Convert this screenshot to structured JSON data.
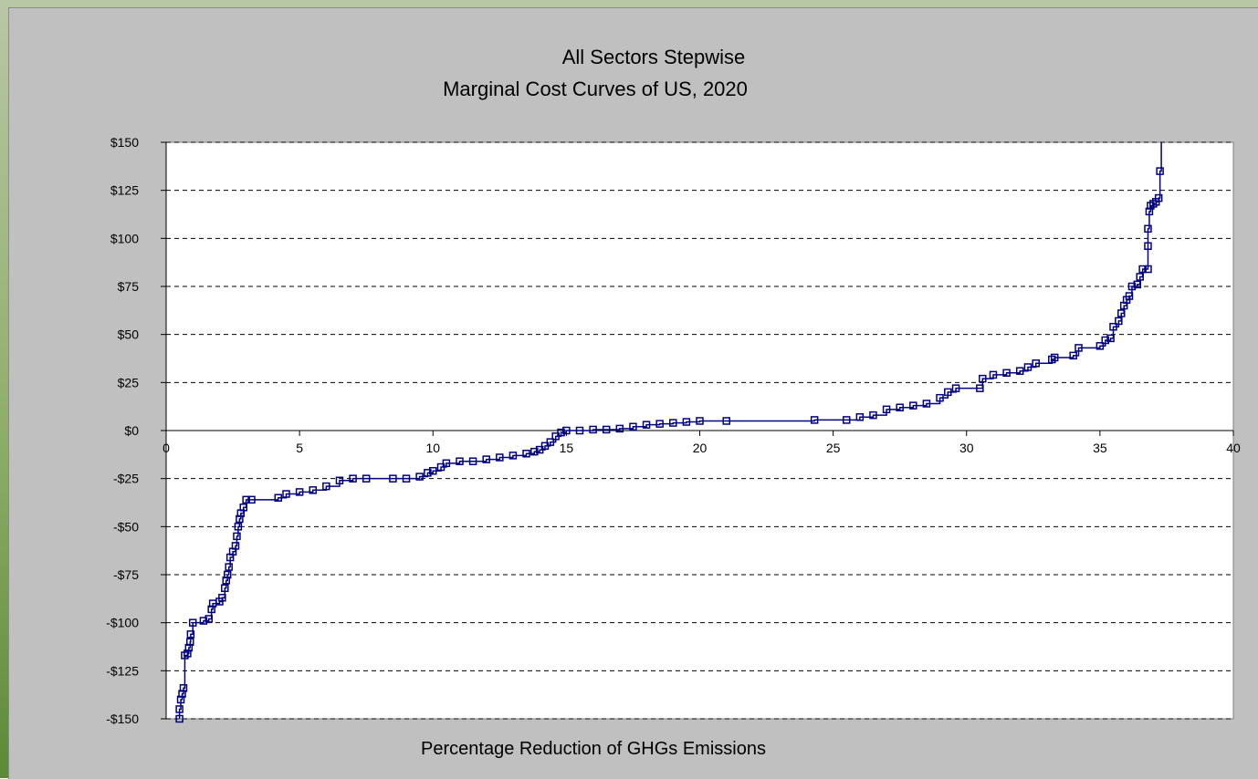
{
  "chart_data": {
    "type": "line",
    "title_line1": "All Sectors Stepwise",
    "title_line2": "Marginal Cost Curves of US, 2020",
    "xlabel": "Percentage Reduction of GHGs Emissions",
    "ylabel": "",
    "xlim": [
      0,
      40
    ],
    "ylim": [
      -150,
      150
    ],
    "x_ticks": [
      0,
      5,
      10,
      15,
      20,
      25,
      30,
      35,
      40
    ],
    "y_ticks": [
      150,
      125,
      100,
      75,
      50,
      25,
      0,
      -25,
      -50,
      -75,
      -100,
      -125,
      -150
    ],
    "y_tick_labels": [
      "$150",
      "$125",
      "$100",
      "$75",
      "$50",
      "$25",
      "$0",
      "-$25",
      "-$50",
      "-$75",
      "-$100",
      "-$125",
      "-$150"
    ],
    "grid": "horizontal-dashed",
    "series_color": "#000080",
    "plot_background": "#ffffff",
    "chart_background": "#c0c0c0",
    "series": [
      {
        "values": [
          [
            0.5,
            -150
          ],
          [
            0.5,
            -145
          ],
          [
            0.55,
            -140
          ],
          [
            0.6,
            -137
          ],
          [
            0.65,
            -134
          ],
          [
            0.7,
            -117
          ],
          [
            0.8,
            -116
          ],
          [
            0.85,
            -113
          ],
          [
            0.9,
            -110
          ],
          [
            0.92,
            -106
          ],
          [
            1.0,
            -100
          ],
          [
            1.4,
            -99
          ],
          [
            1.6,
            -98
          ],
          [
            1.7,
            -93
          ],
          [
            1.75,
            -90
          ],
          [
            2.0,
            -89
          ],
          [
            2.1,
            -87
          ],
          [
            2.2,
            -82
          ],
          [
            2.25,
            -78
          ],
          [
            2.3,
            -75
          ],
          [
            2.35,
            -71
          ],
          [
            2.4,
            -66
          ],
          [
            2.5,
            -63
          ],
          [
            2.6,
            -60
          ],
          [
            2.65,
            -55
          ],
          [
            2.7,
            -50
          ],
          [
            2.75,
            -46
          ],
          [
            2.8,
            -43
          ],
          [
            2.9,
            -40
          ],
          [
            3.0,
            -36
          ],
          [
            3.2,
            -36
          ],
          [
            4.2,
            -35
          ],
          [
            4.5,
            -33
          ],
          [
            5.0,
            -32
          ],
          [
            5.5,
            -31
          ],
          [
            6.0,
            -29
          ],
          [
            6.5,
            -26
          ],
          [
            7.0,
            -25
          ],
          [
            7.5,
            -25
          ],
          [
            8.5,
            -25
          ],
          [
            9.0,
            -25
          ],
          [
            9.5,
            -24
          ],
          [
            9.8,
            -22
          ],
          [
            10.0,
            -21
          ],
          [
            10.3,
            -19
          ],
          [
            10.5,
            -17
          ],
          [
            11.0,
            -16
          ],
          [
            11.5,
            -16
          ],
          [
            12.0,
            -15
          ],
          [
            12.5,
            -14
          ],
          [
            13.0,
            -13
          ],
          [
            13.5,
            -12
          ],
          [
            13.8,
            -11
          ],
          [
            14.0,
            -10
          ],
          [
            14.2,
            -8
          ],
          [
            14.4,
            -6
          ],
          [
            14.6,
            -3
          ],
          [
            14.8,
            -1
          ],
          [
            15.0,
            0
          ],
          [
            15.5,
            0
          ],
          [
            16.0,
            0.5
          ],
          [
            16.5,
            0.5
          ],
          [
            17.0,
            1
          ],
          [
            17.5,
            2
          ],
          [
            18.0,
            3
          ],
          [
            18.5,
            3.5
          ],
          [
            19.0,
            4
          ],
          [
            19.5,
            4.5
          ],
          [
            20.0,
            5
          ],
          [
            21.0,
            5
          ],
          [
            24.3,
            5.5
          ],
          [
            25.5,
            5.5
          ],
          [
            26.0,
            7
          ],
          [
            26.5,
            8
          ],
          [
            27.0,
            11
          ],
          [
            27.5,
            12
          ],
          [
            28.0,
            13
          ],
          [
            28.5,
            14
          ],
          [
            29.0,
            17
          ],
          [
            29.3,
            20
          ],
          [
            29.6,
            22
          ],
          [
            30.5,
            22
          ],
          [
            30.6,
            27
          ],
          [
            31.0,
            29
          ],
          [
            31.5,
            30
          ],
          [
            32.0,
            31
          ],
          [
            32.3,
            33
          ],
          [
            32.6,
            35
          ],
          [
            33.2,
            37
          ],
          [
            33.3,
            38
          ],
          [
            34.0,
            39
          ],
          [
            34.2,
            43
          ],
          [
            35.0,
            44
          ],
          [
            35.2,
            47
          ],
          [
            35.4,
            48
          ],
          [
            35.5,
            54
          ],
          [
            35.7,
            57
          ],
          [
            35.8,
            61
          ],
          [
            35.9,
            65
          ],
          [
            36.0,
            68
          ],
          [
            36.1,
            70
          ],
          [
            36.2,
            75
          ],
          [
            36.4,
            76
          ],
          [
            36.5,
            80
          ],
          [
            36.6,
            84
          ],
          [
            36.8,
            84
          ],
          [
            36.8,
            96
          ],
          [
            36.8,
            105
          ],
          [
            36.85,
            114
          ],
          [
            36.9,
            117
          ],
          [
            37.0,
            118
          ],
          [
            37.1,
            119
          ],
          [
            37.2,
            121
          ],
          [
            37.25,
            135
          ],
          [
            37.3,
            150
          ]
        ]
      }
    ]
  }
}
